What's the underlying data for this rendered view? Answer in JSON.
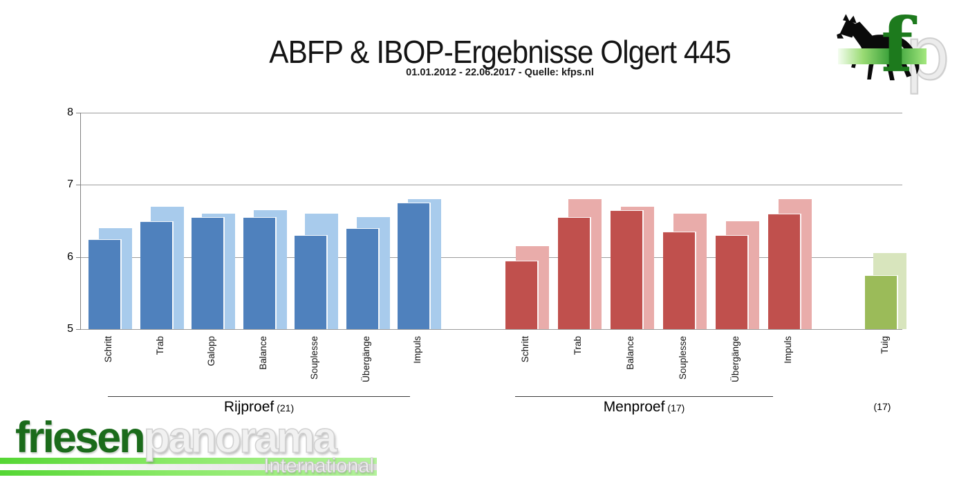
{
  "title": "ABFP & IBOP-Ergebnisse Olgert 445",
  "subtitle": "01.01.2012 - 22.06.2017 - Quelle: kfps.nl",
  "colors": {
    "dark_blue": "#4F81BD",
    "light_blue": "#A8CBEC",
    "dark_red": "#C0504D",
    "light_red": "#E9ACAA",
    "dark_green": "#9BBB59",
    "light_green": "#D8E5BD",
    "gridline": "#9b9b9b",
    "axis": "#808080",
    "logo_green": "#1b6b1b"
  },
  "chart_data": {
    "type": "bar",
    "ylim": [
      5,
      8
    ],
    "yticks": [
      5,
      6,
      7,
      8
    ],
    "grid": true,
    "legend": "none",
    "groups": [
      {
        "label": "Rijproef",
        "count_label": "(21)",
        "colors": {
          "dark": "#4F81BD",
          "light": "#A8CBEC"
        },
        "categories": [
          "Schritt",
          "Trab",
          "Galopp",
          "Balance",
          "Souplesse",
          "Übergänge",
          "Impuls"
        ],
        "series": [
          {
            "name": "dark_front",
            "values": [
              6.25,
              6.5,
              6.55,
              6.55,
              6.3,
              6.4,
              6.75
            ]
          },
          {
            "name": "light_back",
            "values": [
              6.4,
              6.7,
              6.6,
              6.65,
              6.6,
              6.55,
              6.8
            ]
          }
        ]
      },
      {
        "label": "Menproef",
        "count_label": "(17)",
        "colors": {
          "dark": "#C0504D",
          "light": "#E9ACAA"
        },
        "categories": [
          "Schritt",
          "Trab",
          "Balance",
          "Souplesse",
          "Übergänge",
          "Impuls"
        ],
        "series": [
          {
            "name": "dark_front",
            "values": [
              5.95,
              6.55,
              6.65,
              6.35,
              6.3,
              6.6
            ]
          },
          {
            "name": "light_back",
            "values": [
              6.15,
              6.8,
              6.7,
              6.6,
              6.5,
              6.8
            ]
          }
        ]
      },
      {
        "label": "",
        "count_label": "(17)",
        "colors": {
          "dark": "#9BBB59",
          "light": "#D8E5BD"
        },
        "categories": [
          "Tuig"
        ],
        "series": [
          {
            "name": "dark_front",
            "values": [
              5.75
            ]
          },
          {
            "name": "light_back",
            "values": [
              6.05
            ]
          }
        ]
      }
    ]
  },
  "logos": {
    "top_right": {
      "f": "f",
      "p": "p"
    },
    "bottom_left": {
      "friesen": "friesen",
      "panorama": "panorama",
      "international": "International"
    }
  }
}
